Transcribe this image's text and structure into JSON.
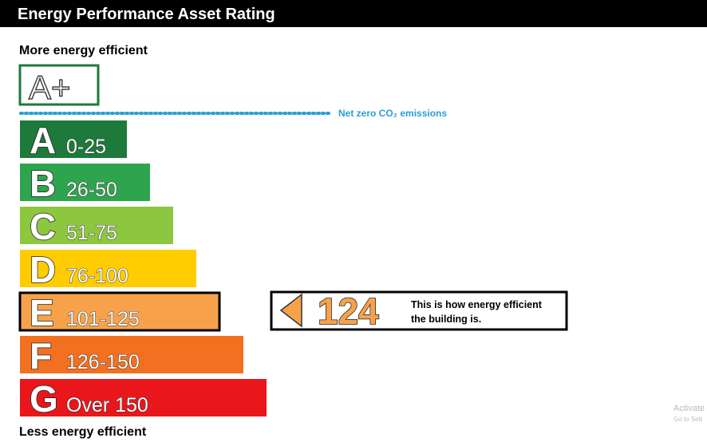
{
  "header": {
    "title": "Energy Performance Asset Rating"
  },
  "top_label": "More energy efficient",
  "bottom_label": "Less energy efficient",
  "net_zero": {
    "letter": "A+",
    "text": "Net zero CO₂ emissions"
  },
  "bands": [
    {
      "letter": "A",
      "range": "0-25",
      "color": "#1d7a3a"
    },
    {
      "letter": "B",
      "range": "26-50",
      "color": "#2ea44f"
    },
    {
      "letter": "C",
      "range": "51-75",
      "color": "#8dc63f"
    },
    {
      "letter": "D",
      "range": "76-100",
      "color": "#ffcc00"
    },
    {
      "letter": "E",
      "range": "101-125",
      "color": "#f7a24b"
    },
    {
      "letter": "F",
      "range": "126-150",
      "color": "#f2701f"
    },
    {
      "letter": "G",
      "range": "Over 150",
      "color": "#e9161b"
    }
  ],
  "rating": {
    "value": "124",
    "color": "#f7a24b",
    "description": [
      "This is how energy efficient",
      "the building is."
    ]
  },
  "watermark": [
    "Activate",
    "Go to Sett"
  ]
}
